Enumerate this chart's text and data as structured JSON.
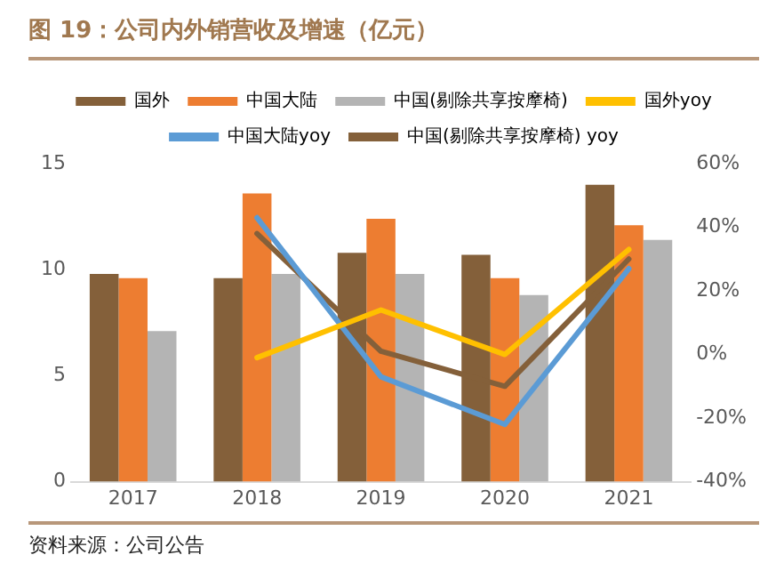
{
  "chart_data": {
    "type": "bar",
    "title": "图 19：公司内外销营收及增速（亿元）",
    "categories": [
      "2017",
      "2018",
      "2019",
      "2020",
      "2021"
    ],
    "series": [
      {
        "name": "国外",
        "color": "#84603a",
        "values": [
          9.8,
          9.6,
          10.8,
          10.7,
          14.0
        ]
      },
      {
        "name": "中国大陆",
        "color": "#ed7d31",
        "values": [
          9.6,
          13.6,
          12.4,
          9.6,
          12.1
        ]
      },
      {
        "name": "中国(剔除共享按摩椅)",
        "color": "#b4b4b4",
        "values": [
          7.1,
          9.8,
          9.8,
          8.8,
          11.4
        ]
      },
      {
        "name": "国外yoy",
        "type": "line",
        "axis": "y2",
        "color": "#ffc000",
        "values": [
          null,
          -1,
          14,
          0,
          33
        ]
      },
      {
        "name": "中国大陆yoy",
        "type": "line",
        "axis": "y2",
        "color": "#5b9bd5",
        "values": [
          null,
          43,
          -7,
          -22,
          27
        ]
      },
      {
        "name": "中国(剔除共享按摩椅) yoy",
        "type": "line",
        "axis": "y2",
        "color": "#84603a",
        "values": [
          null,
          38,
          1,
          -10,
          30
        ]
      }
    ],
    "ylim": [
      0,
      15
    ],
    "yticks": [
      0,
      5,
      10,
      15
    ],
    "y2lim": [
      -40,
      60
    ],
    "y2ticks": [
      {
        "value": -40,
        "label": "-40%"
      },
      {
        "value": -20,
        "label": "-20%"
      },
      {
        "value": 0,
        "label": "0%"
      },
      {
        "value": 20,
        "label": "20%"
      },
      {
        "value": 40,
        "label": "40%"
      },
      {
        "value": 60,
        "label": "60%"
      }
    ],
    "grid": false,
    "legend": "top",
    "marker": "none",
    "annotations": [
      "资料来源：公司公告"
    ]
  }
}
